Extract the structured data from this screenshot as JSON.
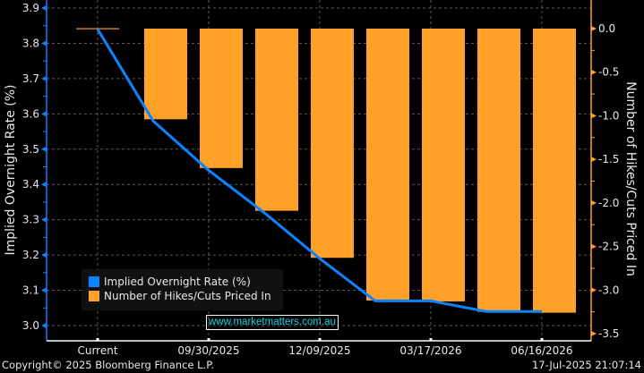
{
  "chart_data": {
    "type": "bar+line",
    "categories": [
      "Current",
      "",
      "09/30/2025",
      "",
      "12/09/2025",
      "",
      "03/17/2026",
      "",
      "06/16/2026"
    ],
    "x_tick_labels": [
      "Current",
      "09/30/2025",
      "12/09/2025",
      "03/17/2026",
      "06/16/2026"
    ],
    "series": [
      {
        "name": "Implied Overnight Rate (%)",
        "type": "line",
        "axis": "left",
        "color": "#0a84ff",
        "values": [
          3.84,
          3.58,
          3.44,
          3.32,
          3.19,
          3.07,
          3.07,
          3.04,
          3.04
        ]
      },
      {
        "name": "Number of Hikes/Cuts Priced In",
        "type": "bar",
        "axis": "right",
        "color": "#ffa028",
        "values": [
          0.0,
          -1.04,
          -1.6,
          -2.09,
          -2.63,
          -3.12,
          -3.13,
          -3.25,
          -3.26
        ]
      }
    ],
    "y_left": {
      "label": "Implied Overnight Rate (%)",
      "ylim": [
        2.96,
        3.92
      ],
      "ticks": [
        "3.9",
        "3.8",
        "3.7",
        "3.6",
        "3.5",
        "3.4",
        "3.3",
        "3.2",
        "3.1",
        "3.0"
      ]
    },
    "y_right": {
      "label": "Number of Hikes/Cuts Priced In",
      "ylim": [
        -3.55,
        0.33
      ],
      "ticks": [
        "0.0",
        "-0.5",
        "-1.0",
        "-1.5",
        "-2.0",
        "-2.5",
        "-3.0",
        "-3.5"
      ]
    },
    "grid": true,
    "legend": "bottom-left"
  },
  "watermark": "www.marketmatters.com.au",
  "footer": {
    "copyright": "Copyright© 2025 Bloomberg Finance L.P.",
    "timestamp": "17-Jul-2025 21:07:14"
  },
  "colors": {
    "background": "#000000",
    "line": "#0a84ff",
    "bar": "#ffa028",
    "grid": "#5a5a5a"
  }
}
